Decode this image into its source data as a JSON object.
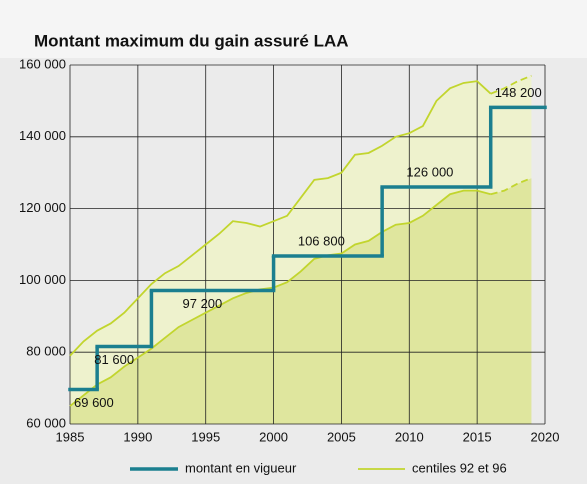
{
  "chart_data": {
    "type": "step-band",
    "title": "Montant maximum du gain assuré LAA",
    "xlim": [
      1985,
      2020
    ],
    "xticks": [
      1985,
      1990,
      1995,
      2000,
      2005,
      2010,
      2015,
      2020
    ],
    "ylim": [
      60000,
      160000
    ],
    "yticks": [
      {
        "value": 60000,
        "label": "60 000"
      },
      {
        "value": 80000,
        "label": "80 000"
      },
      {
        "value": 100000,
        "label": "100 000"
      },
      {
        "value": 120000,
        "label": "120 000"
      },
      {
        "value": 140000,
        "label": "140 000"
      },
      {
        "value": 160000,
        "label": "160 000"
      }
    ],
    "grid": true,
    "step": {
      "name": "montant en vigueur",
      "color": "#1b7f8f",
      "x": [
        1985,
        1987,
        1991,
        2000,
        2008,
        2016,
        2020
      ],
      "values": [
        69600,
        81600,
        97200,
        106800,
        126000,
        148200
      ],
      "value_labels": [
        "69 600",
        "81 600",
        "97 200",
        "106 800",
        "126 000",
        "148 200"
      ]
    },
    "centiles": {
      "name": "centiles 92 et 96",
      "color": "#c2d52e",
      "dashed_from": 2016,
      "x": [
        1985,
        1986,
        1987,
        1988,
        1989,
        1990,
        1991,
        1992,
        1993,
        1994,
        1995,
        1996,
        1997,
        1998,
        1999,
        2000,
        2001,
        2002,
        2003,
        2004,
        2005,
        2006,
        2007,
        2008,
        2009,
        2010,
        2011,
        2012,
        2013,
        2014,
        2015,
        2016,
        2017,
        2018,
        2019
      ],
      "p96": [
        79000,
        83000,
        86000,
        88000,
        91000,
        95000,
        99000,
        102000,
        104000,
        107000,
        110000,
        113000,
        116500,
        116000,
        115000,
        116500,
        118000,
        123000,
        128000,
        128500,
        130000,
        135000,
        135500,
        137500,
        140000,
        141000,
        143000,
        150000,
        153500,
        155000,
        155500,
        152000,
        153500,
        155500,
        157000
      ],
      "p92": [
        65000,
        68000,
        71000,
        73000,
        76000,
        78500,
        81000,
        84000,
        87000,
        89000,
        91000,
        93000,
        95000,
        96500,
        97500,
        98000,
        99500,
        102500,
        106000,
        107000,
        107500,
        110000,
        111000,
        113500,
        115500,
        116000,
        118000,
        121000,
        124000,
        125000,
        125000,
        124000,
        125000,
        127000,
        128500
      ]
    }
  }
}
